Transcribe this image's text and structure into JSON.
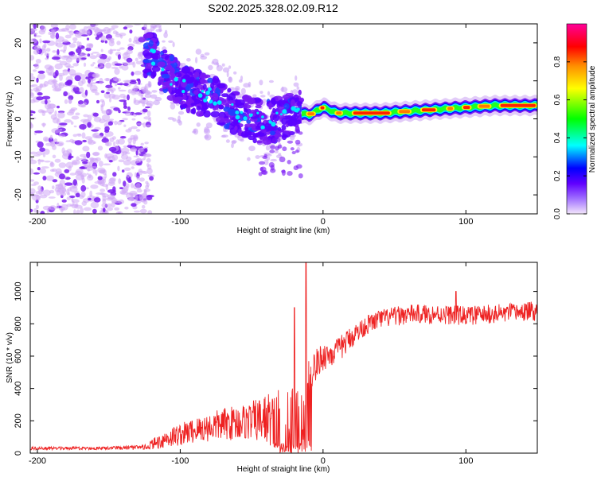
{
  "title": "S202.2025.328.02.09.R12",
  "chart_data": [
    {
      "type": "heatmap",
      "name": "spectrogram",
      "xlabel": "Height of straight line (km)",
      "ylabel": "Frequency (Hz)",
      "xlim": [
        -205,
        150
      ],
      "ylim": [
        -25,
        25
      ],
      "xticks": [
        -200,
        -100,
        0,
        100
      ],
      "yticks": [
        -20,
        -10,
        0,
        10,
        20
      ],
      "ridge": {
        "description_x": [
          -120,
          -110,
          -100,
          -90,
          -80,
          -70,
          -60,
          -50,
          -40,
          -30,
          -20,
          -10,
          0,
          10,
          20,
          40,
          60,
          80,
          100,
          120,
          150
        ],
        "frequency_hz": [
          17,
          12,
          9,
          7,
          6,
          4,
          1.5,
          0,
          -1,
          0,
          2,
          1,
          3,
          1.5,
          1.5,
          1.5,
          2,
          2.5,
          3,
          3.5,
          3.5
        ]
      },
      "colorbar": {
        "label": "Normalized spectral amplitude",
        "ticks": [
          0.0,
          0.2,
          0.4,
          0.6,
          0.8
        ],
        "range": [
          0,
          1
        ],
        "colors": [
          "#e8d5f5",
          "#7b00ff",
          "#0000ff",
          "#00ffff",
          "#00ff00",
          "#ffff00",
          "#ff8800",
          "#ff0000",
          "#ff00aa"
        ]
      }
    },
    {
      "type": "line",
      "name": "snr",
      "xlabel": "Height of straight line (km)",
      "ylabel": "SNR (10 * v/v)",
      "xlim": [
        -205,
        150
      ],
      "ylim": [
        0,
        1180
      ],
      "xticks": [
        -200,
        -100,
        0,
        100
      ],
      "yticks": [
        0,
        200,
        400,
        600,
        800,
        1000
      ],
      "color": "#ee2222",
      "envelope_x": [
        -205,
        -150,
        -125,
        -110,
        -90,
        -70,
        -50,
        -30,
        -20,
        -15,
        -10,
        -5,
        0,
        10,
        20,
        30,
        40,
        60,
        80,
        100,
        120,
        150
      ],
      "envelope_mean": [
        30,
        30,
        35,
        90,
        140,
        180,
        200,
        220,
        200,
        230,
        500,
        540,
        600,
        630,
        720,
        790,
        830,
        860,
        860,
        850,
        860,
        880
      ],
      "envelope_noise": [
        10,
        10,
        15,
        60,
        80,
        100,
        120,
        200,
        220,
        300,
        120,
        100,
        90,
        80,
        70,
        60,
        60,
        60,
        60,
        60,
        60,
        60
      ],
      "peaks": [
        {
          "x": -12,
          "y": 1180
        },
        {
          "x": -20,
          "y": 900
        },
        {
          "x": 93,
          "y": 1000
        }
      ]
    }
  ]
}
